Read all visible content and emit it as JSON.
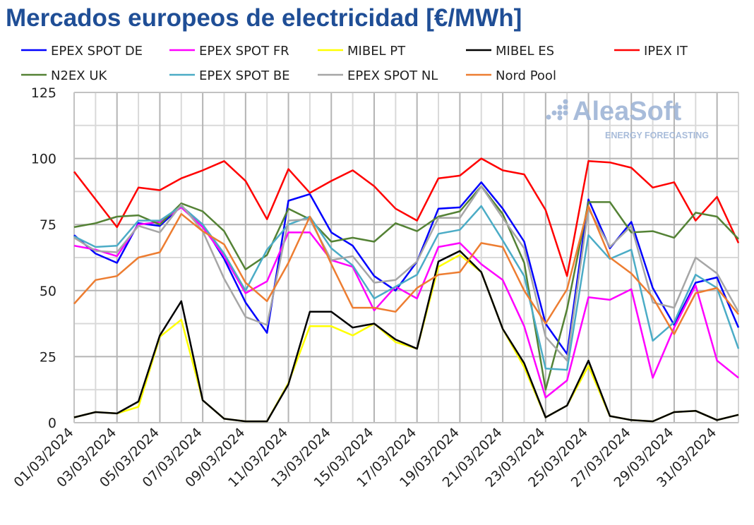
{
  "title": "Mercados europeos de electricidad [€/MWh]",
  "logo": {
    "name": "AleaSoft",
    "tagline": "ENERGY FORECASTING",
    "color": "#9fb5d6"
  },
  "chart_data": {
    "type": "line",
    "title": "Mercados europeos de electricidad [€/MWh]",
    "xlabel": "",
    "ylabel": "",
    "ylim": [
      0,
      125
    ],
    "yticks": [
      "0",
      "25",
      "50",
      "75",
      "100",
      "125"
    ],
    "grid": true,
    "legend": "top",
    "x_labels": [
      "01/03/2024",
      "03/03/2024",
      "05/03/2024",
      "07/03/2024",
      "09/03/2024",
      "11/03/2024",
      "13/03/2024",
      "15/03/2024",
      "17/03/2024",
      "19/03/2024",
      "21/03/2024",
      "23/03/2024",
      "25/03/2024",
      "27/03/2024",
      "29/03/2024",
      "31/03/2024"
    ],
    "series": [
      {
        "name": "EPEX SPOT DE",
        "color": "#0000ff",
        "values": [
          71,
          64,
          60.5,
          75.5,
          74.5,
          82,
          75,
          62,
          45.5,
          34,
          84,
          86.5,
          72,
          67,
          55.5,
          50,
          61,
          81,
          81.5,
          91,
          81,
          68.5,
          37.5,
          26,
          84.5,
          66,
          76,
          51,
          37,
          53,
          55,
          36
        ]
      },
      {
        "name": "EPEX SPOT FR",
        "color": "#ff00ff",
        "values": [
          67,
          65.5,
          63,
          75,
          76,
          81.5,
          74,
          63,
          49,
          53.5,
          72,
          72,
          61.5,
          59,
          42.5,
          51.5,
          47,
          66.5,
          68,
          60,
          54,
          36.5,
          9.5,
          16,
          47.5,
          46.5,
          50.5,
          17,
          36,
          52,
          23.5,
          17
        ]
      },
      {
        "name": "MIBEL PT",
        "color": "#ffff00",
        "values": [
          2,
          4,
          3.5,
          6,
          32.5,
          39,
          8.5,
          1.5,
          0.5,
          0.5,
          15,
          36.5,
          36.5,
          33,
          37.5,
          30.5,
          28,
          59,
          63.5,
          57,
          35.5,
          21,
          2,
          6.5,
          21.5,
          2.5,
          1,
          0.5,
          4,
          4.5,
          1,
          3
        ]
      },
      {
        "name": "MIBEL ES",
        "color": "#000000",
        "values": [
          2,
          4,
          3.5,
          8,
          33,
          46,
          8.5,
          1.5,
          0.5,
          0.5,
          14.5,
          42,
          42,
          36,
          37.5,
          31.5,
          28,
          61,
          65,
          57,
          35.5,
          22.5,
          2,
          6.5,
          23.5,
          2.5,
          1,
          0.5,
          4,
          4.5,
          1,
          3
        ]
      },
      {
        "name": "IPEX IT",
        "color": "#ff0000",
        "values": [
          95,
          84.5,
          74,
          89,
          88,
          92.5,
          95.5,
          99,
          91.5,
          77,
          96,
          87,
          91.5,
          95.5,
          89.5,
          81,
          76.5,
          92.5,
          93.5,
          100,
          95.5,
          94,
          80.5,
          55.5,
          99,
          98.5,
          96.5,
          89,
          91,
          76.5,
          85.5,
          68
        ]
      },
      {
        "name": "N2EX UK",
        "color": "#548235",
        "values": [
          74,
          75.5,
          78,
          78.5,
          75,
          83,
          80,
          72.5,
          58,
          63.5,
          81,
          77,
          68.5,
          70,
          68.5,
          75.5,
          72.5,
          78,
          80,
          89.5,
          79,
          60.5,
          12.5,
          43,
          83.5,
          83.5,
          72,
          72.5,
          70,
          79.5,
          78,
          69.5
        ]
      },
      {
        "name": "EPEX SPOT BE",
        "color": "#4bacc6",
        "values": [
          70.5,
          66.5,
          67,
          76.5,
          76.5,
          82,
          75,
          64,
          50,
          65.5,
          75,
          78,
          66,
          59.5,
          47,
          51.5,
          56,
          71.5,
          73,
          82,
          69,
          55.5,
          20.5,
          20,
          71,
          62,
          65.5,
          31,
          38,
          56,
          51,
          28
        ]
      },
      {
        "name": "EPEX SPOT NL",
        "color": "#a6a6a6",
        "values": [
          70,
          65,
          64.5,
          74.5,
          72,
          82.5,
          72.5,
          54.5,
          40,
          37,
          76.5,
          77,
          61.5,
          63,
          53,
          54,
          61,
          77.5,
          77.5,
          89.5,
          77.5,
          66,
          32.5,
          23.5,
          81,
          66.5,
          74.5,
          45.5,
          43.5,
          62.5,
          56.5,
          42
        ]
      },
      {
        "name": "Nord Pool",
        "color": "#ed7d31",
        "values": [
          45,
          54,
          55.5,
          62.5,
          64.5,
          79,
          72.5,
          67.5,
          53,
          46,
          60.5,
          78,
          60,
          43.5,
          43.5,
          42,
          51,
          56,
          57,
          68,
          66.5,
          50,
          37.5,
          50.5,
          82,
          62.5,
          56.5,
          47.5,
          33.5,
          49,
          51,
          41
        ]
      }
    ]
  }
}
